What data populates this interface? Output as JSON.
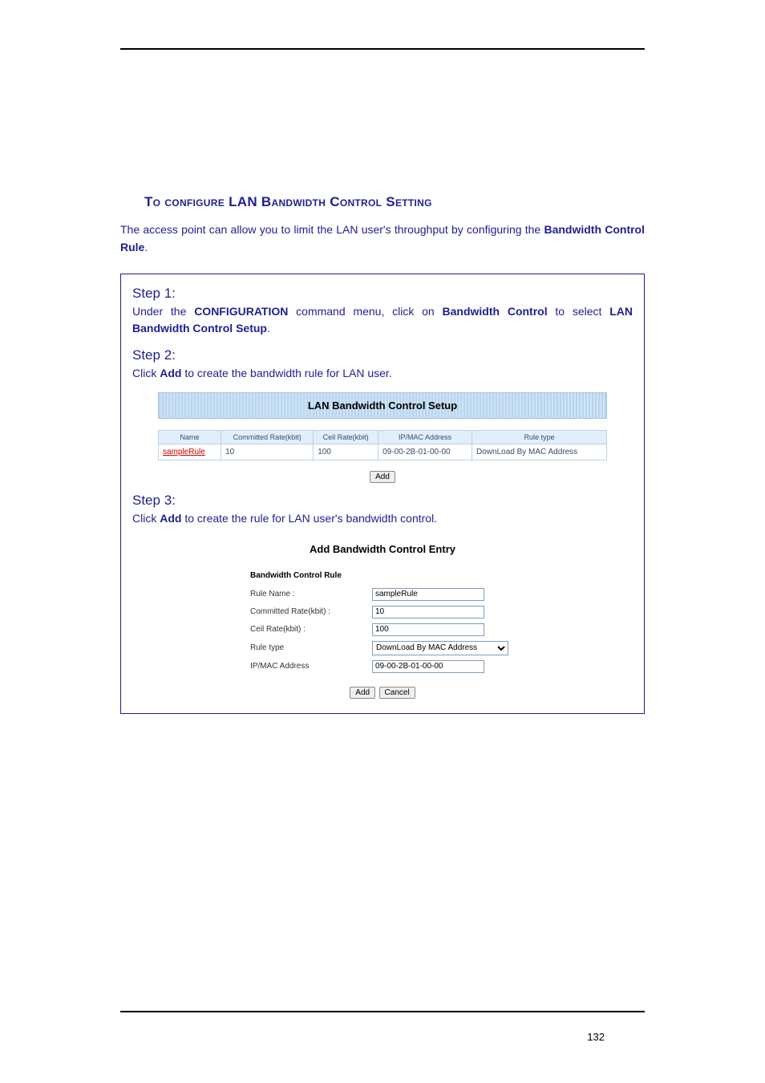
{
  "section_title": "To configure LAN Bandwidth Control Setting",
  "intro": {
    "pre": "The access point can allow you to limit the LAN user's throughput by configuring the ",
    "bold": "Bandwidth Control Rule",
    "post": "."
  },
  "step1": {
    "label": "Step 1:",
    "pre": "Under the ",
    "b1": "CONFIGURATION",
    "mid1": " command menu, click on ",
    "b2": "Bandwidth Control",
    "mid2": " to select ",
    "b3": "LAN Bandwidth Control Setup",
    "post": "."
  },
  "step2": {
    "label": "Step 2:",
    "pre": "Click ",
    "b1": "Add",
    "post": " to create the bandwidth rule for LAN user."
  },
  "step3": {
    "label": "Step 3:",
    "pre": "Click ",
    "b1": "Add",
    "post": " to create the rule for LAN user's bandwidth control."
  },
  "grid": {
    "title": "LAN Bandwidth Control Setup",
    "headers": [
      "Name",
      "Committed Rate(kbit)",
      "Ceil Rate(kbit)",
      "IP/MAC Address",
      "Rule type"
    ],
    "row": {
      "name": "sampleRule",
      "committed": "10",
      "ceil": "100",
      "addr": "09-00-2B-01-00-00",
      "type": "DownLoad By MAC Address"
    },
    "add_btn": "Add"
  },
  "form": {
    "title": "Add Bandwidth Control Entry",
    "subtitle": "Bandwidth Control Rule",
    "labels": {
      "rule_name": "Rule Name :",
      "committed": "Committed Rate(kbit) :",
      "ceil": "Ceil Rate(kbit) :",
      "rule_type": "Rule type",
      "addr": "IP/MAC Address"
    },
    "values": {
      "rule_name": "sampleRule",
      "committed": "10",
      "ceil": "100",
      "rule_type": "DownLoad By MAC Address",
      "addr": "09-00-2B-01-00-00"
    },
    "add_btn": "Add",
    "cancel_btn": "Cancel"
  },
  "page_number": "132"
}
